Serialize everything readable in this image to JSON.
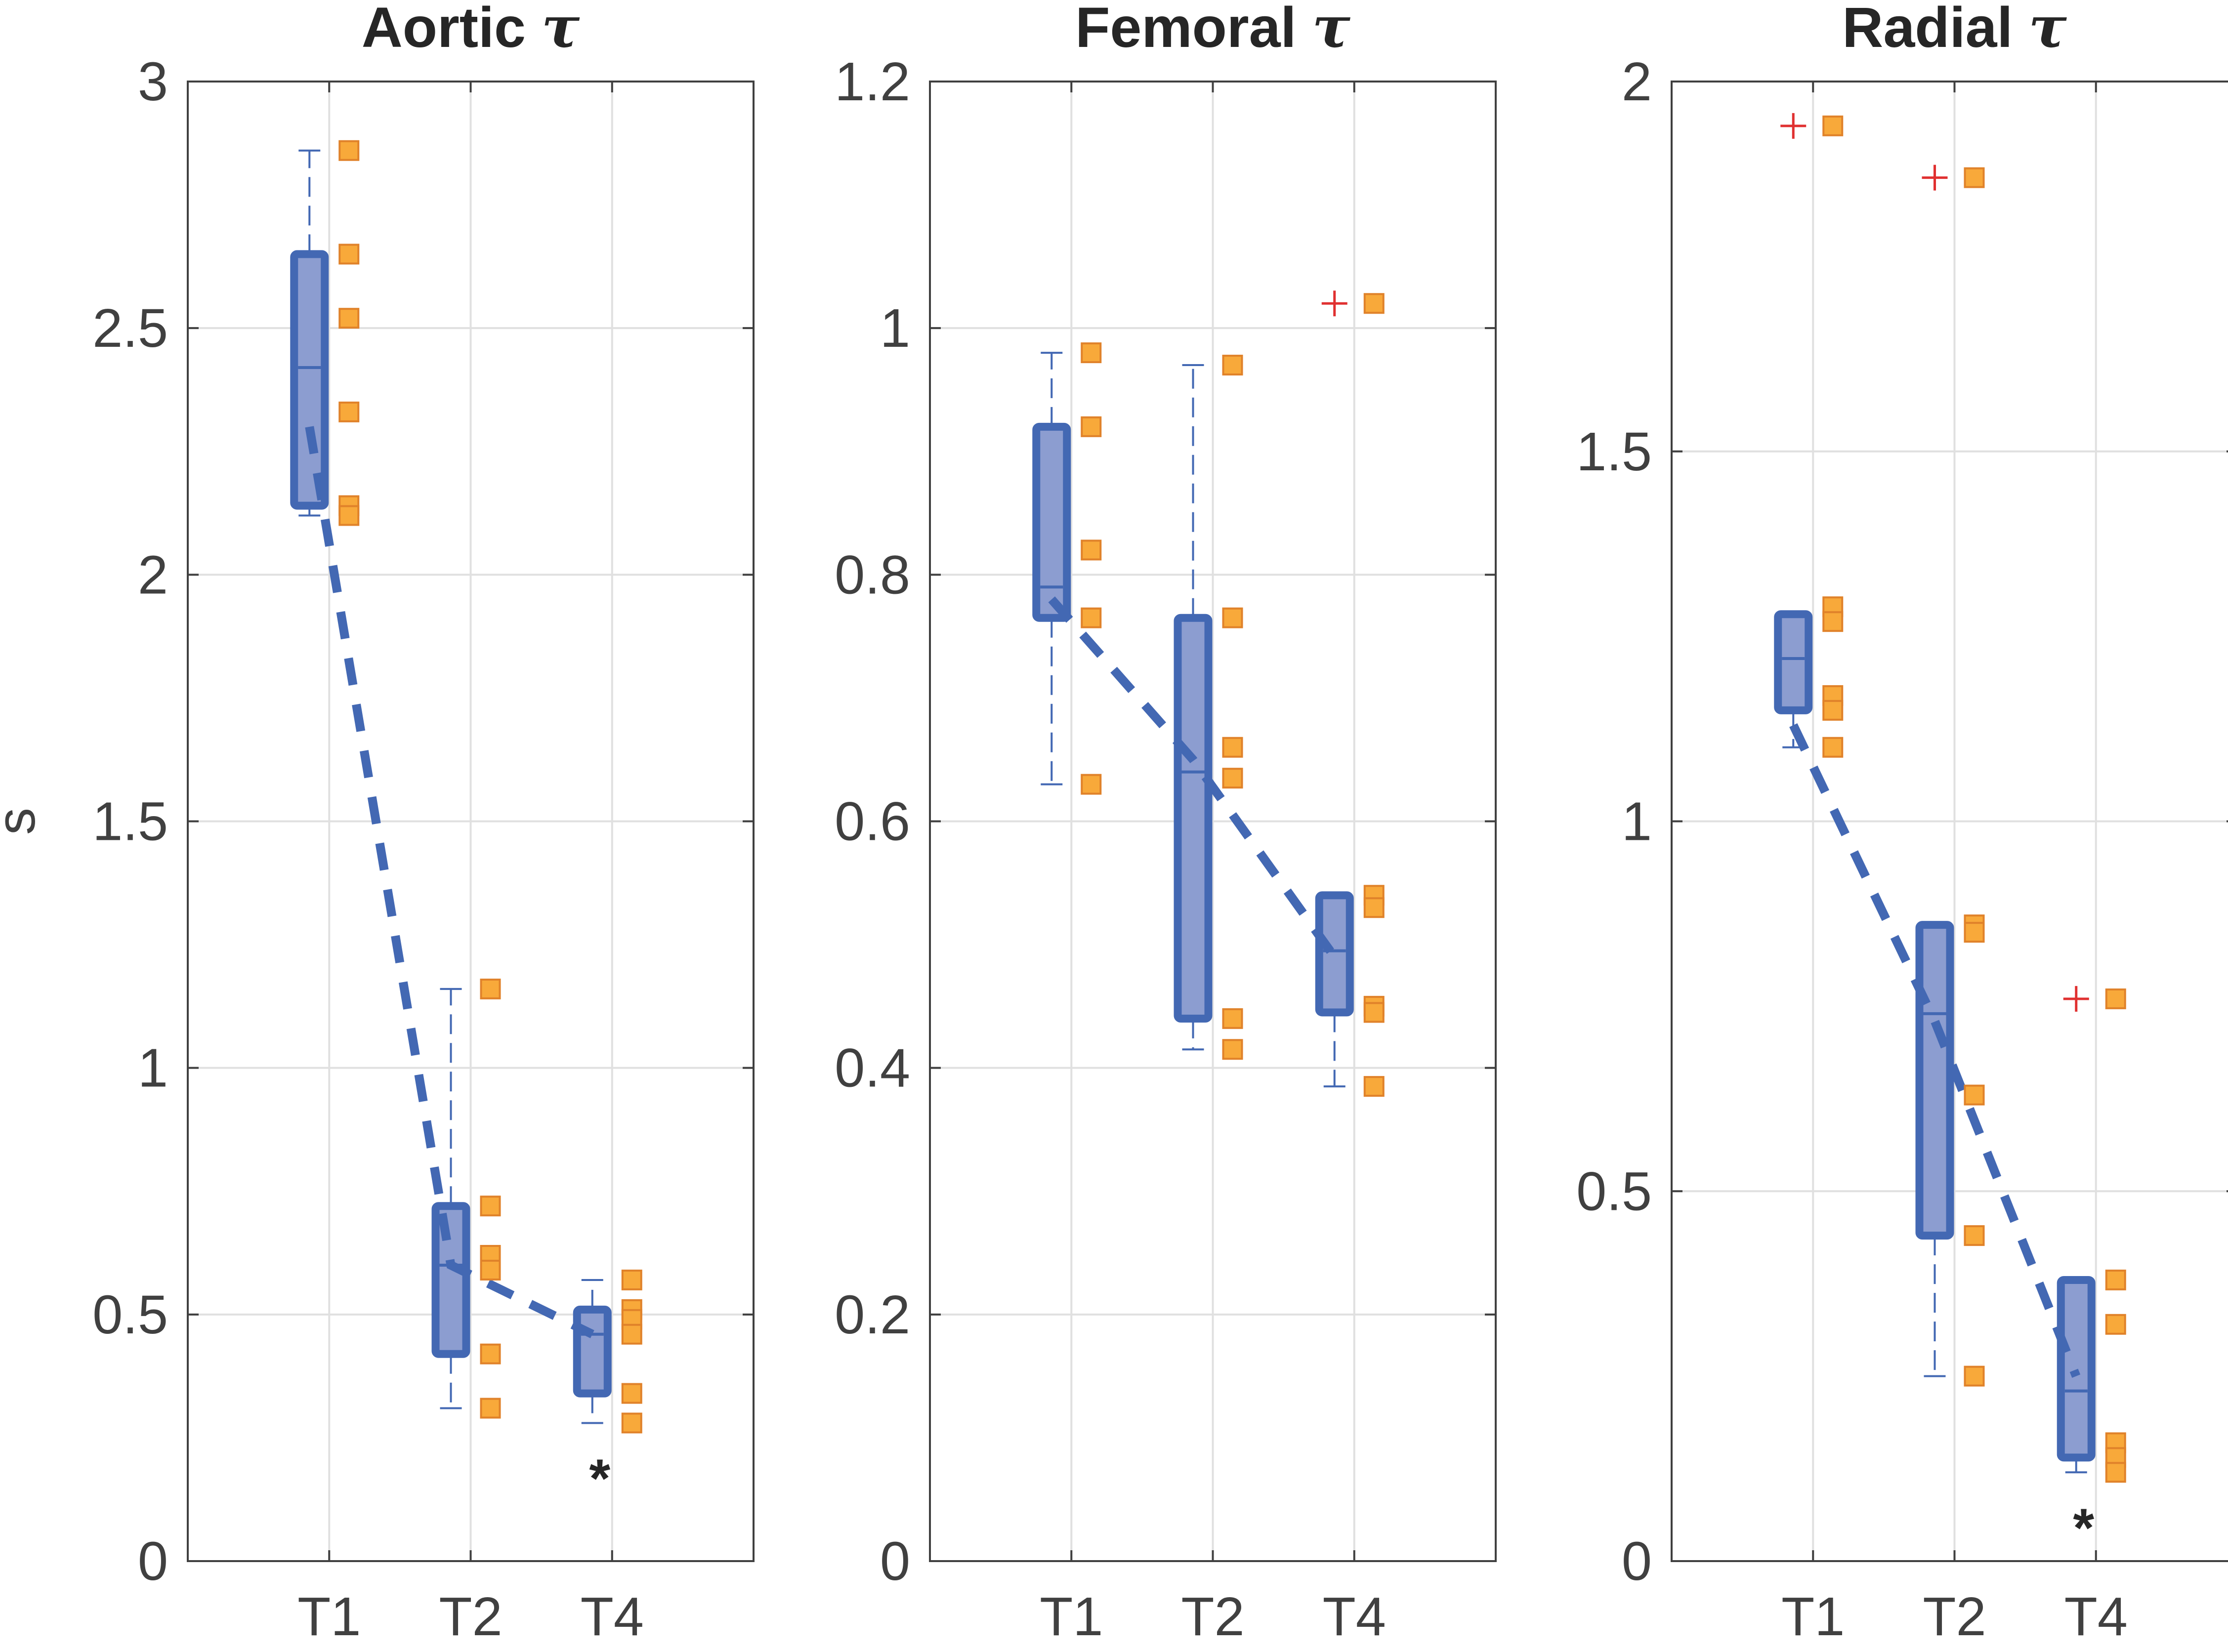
{
  "colors": {
    "box": "#4368B3",
    "box_fill": "#8C9DD0",
    "point": "#F8A93A",
    "point_edge": "#E0822A",
    "outlier": "#E03030",
    "grid": "#E0E0E0",
    "axis": "#404040"
  },
  "chart_data": [
    {
      "type": "box",
      "title": "Aortic",
      "title_symbol": "τ",
      "ylabel": "s",
      "ylim": [
        0,
        3
      ],
      "yticks": [
        0,
        0.5,
        1,
        1.5,
        2,
        2.5,
        3
      ],
      "ytick_labels": [
        "0",
        "0.5",
        "1",
        "1.5",
        "2",
        "2.5",
        "3"
      ],
      "categories": [
        "T1",
        "T2",
        "T4"
      ],
      "boxes": [
        {
          "q1": 2.14,
          "median": 2.42,
          "q3": 2.65,
          "whisker_low": 2.12,
          "whisker_high": 2.86
        },
        {
          "q1": 0.42,
          "median": 0.6,
          "q3": 0.72,
          "whisker_low": 0.31,
          "whisker_high": 1.16
        },
        {
          "q1": 0.34,
          "median": 0.46,
          "q3": 0.51,
          "whisker_low": 0.28,
          "whisker_high": 0.57
        }
      ],
      "mean_line": [
        2.3,
        0.6,
        0.46
      ],
      "points": [
        [
          2.86,
          2.65,
          2.52,
          2.33,
          2.14,
          2.12
        ],
        [
          1.16,
          0.72,
          0.62,
          0.59,
          0.42,
          0.31
        ],
        [
          0.57,
          0.51,
          0.49,
          0.46,
          0.34,
          0.28
        ]
      ],
      "outliers": [
        [],
        [],
        []
      ],
      "significance": [
        "",
        "",
        "*"
      ]
    },
    {
      "type": "box",
      "title": "Femoral",
      "title_symbol": "τ",
      "ylabel": "",
      "ylim": [
        0,
        1.2
      ],
      "yticks": [
        0,
        0.2,
        0.4,
        0.6,
        0.8,
        1,
        1.2
      ],
      "ytick_labels": [
        "0",
        "0.2",
        "0.4",
        "0.6",
        "0.8",
        "1",
        "1.2"
      ],
      "categories": [
        "T1",
        "T2",
        "T4"
      ],
      "boxes": [
        {
          "q1": 0.765,
          "median": 0.79,
          "q3": 0.92,
          "whisker_low": 0.63,
          "whisker_high": 0.98
        },
        {
          "q1": 0.44,
          "median": 0.64,
          "q3": 0.765,
          "whisker_low": 0.415,
          "whisker_high": 0.97
        },
        {
          "q1": 0.445,
          "median": 0.495,
          "q3": 0.54,
          "whisker_low": 0.385,
          "whisker_high": 0.54
        }
      ],
      "mean_line": [
        0.78,
        0.65,
        0.49
      ],
      "points": [
        [
          0.98,
          0.92,
          0.82,
          0.765,
          0.63
        ],
        [
          0.97,
          0.765,
          0.66,
          0.635,
          0.44,
          0.415
        ],
        [
          1.02,
          0.54,
          0.53,
          0.45,
          0.445,
          0.385
        ]
      ],
      "outliers": [
        [],
        [],
        [
          1.02
        ]
      ],
      "significance": [
        "",
        "",
        ""
      ]
    },
    {
      "type": "box",
      "title": "Radial",
      "title_symbol": "τ",
      "ylabel": "",
      "ylim": [
        0,
        2
      ],
      "yticks": [
        0,
        0.5,
        1,
        1.5,
        2
      ],
      "ytick_labels": [
        "0",
        "0.5",
        "1",
        "1.5",
        "2"
      ],
      "categories": [
        "T1",
        "T2",
        "T4"
      ],
      "boxes": [
        {
          "q1": 1.15,
          "median": 1.22,
          "q3": 1.28,
          "whisker_low": 1.1,
          "whisker_high": 1.28
        },
        {
          "q1": 0.44,
          "median": 0.74,
          "q3": 0.86,
          "whisker_low": 0.25,
          "whisker_high": 0.86
        },
        {
          "q1": 0.14,
          "median": 0.23,
          "q3": 0.38,
          "whisker_low": 0.12,
          "whisker_high": 0.38
        }
      ],
      "mean_line": [
        1.13,
        0.73,
        0.25
      ],
      "points": [
        [
          1.94,
          1.29,
          1.27,
          1.17,
          1.15,
          1.1
        ],
        [
          1.87,
          0.86,
          0.85,
          0.63,
          0.44,
          0.25
        ],
        [
          0.76,
          0.38,
          0.32,
          0.16,
          0.14,
          0.12
        ]
      ],
      "outliers": [
        [
          1.94
        ],
        [
          1.87
        ],
        [
          0.76
        ]
      ],
      "significance": [
        "",
        "",
        "*"
      ]
    }
  ]
}
